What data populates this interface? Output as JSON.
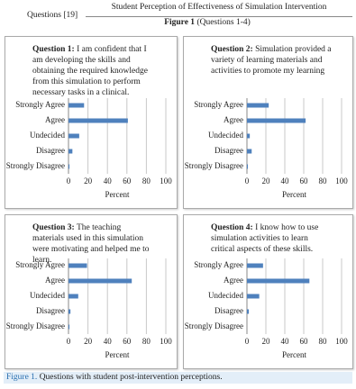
{
  "header": {
    "left": "Questions [19]",
    "title": "Student Perception of Effectiveness of Simulation Intervention",
    "figure_label": "Figure 1",
    "figure_title": "(Questions 1-4)"
  },
  "caption": {
    "label": "Figure 1.",
    "text": "Questions with student post-intervention perceptions."
  },
  "chart_data": [
    {
      "type": "bar",
      "orientation": "horizontal",
      "question": "Question 1:",
      "title": "I am confident that I am developing the skills and obtaining the required knowledge from this simulation to perform necessary tasks in a clinical.",
      "categories": [
        "Strongly Agree",
        "Agree",
        "Undecided",
        "Disagree",
        "Strongly Disagree"
      ],
      "values": [
        16,
        61,
        11,
        4,
        1
      ],
      "color": "#4f81bd",
      "xlim": [
        0,
        100
      ],
      "xticks": [
        0,
        20,
        40,
        60,
        80,
        100
      ],
      "xlabel": "Percent",
      "grid": true
    },
    {
      "type": "bar",
      "orientation": "horizontal",
      "question": "Question 2:",
      "title": "Simulation provided a variety of learning materials and activities to promote my learning",
      "categories": [
        "Strongly Agree",
        "Agree",
        "Undecided",
        "Disagree",
        "Strongly Disagree"
      ],
      "values": [
        23,
        62,
        3,
        5,
        1
      ],
      "color": "#4f81bd",
      "xlim": [
        0,
        100
      ],
      "xticks": [
        0,
        20,
        40,
        60,
        80,
        100
      ],
      "xlabel": "Percent",
      "grid": true
    },
    {
      "type": "bar",
      "orientation": "horizontal",
      "question": "Question 3:",
      "title": "The teaching materials used in this simulation were motivating and helped me to learn.",
      "categories": [
        "Strongly Agree",
        "Agree",
        "Undecided",
        "Disagree",
        "Strongly Disagree"
      ],
      "values": [
        19,
        65,
        10,
        2,
        1
      ],
      "color": "#4f81bd",
      "xlim": [
        0,
        100
      ],
      "xticks": [
        0,
        20,
        40,
        60,
        80,
        100
      ],
      "xlabel": "Percent",
      "grid": true
    },
    {
      "type": "bar",
      "orientation": "horizontal",
      "question": "Question 4:",
      "title": "I know how to use simulation activities to learn critical aspects of these skills.",
      "categories": [
        "Strongly Agree",
        "Agree",
        "Undecided",
        "Disagree",
        "Strongly Disagree"
      ],
      "values": [
        17,
        66,
        13,
        2,
        0
      ],
      "color": "#4f81bd",
      "xlim": [
        0,
        100
      ],
      "xticks": [
        0,
        20,
        40,
        60,
        80,
        100
      ],
      "xlabel": "Percent",
      "grid": true
    }
  ]
}
